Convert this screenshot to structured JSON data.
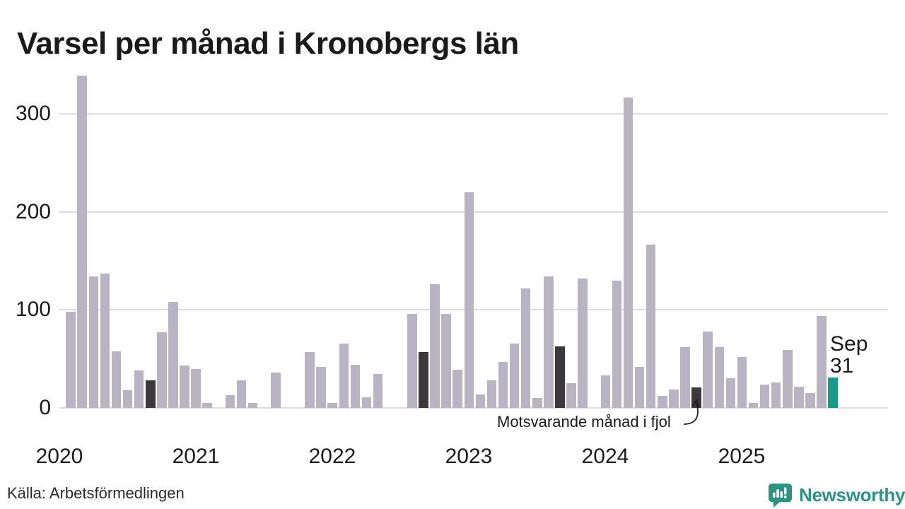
{
  "title": "Varsel per månad i Kronobergs län",
  "source": "Källa: Arbetsförmedlingen",
  "branding": {
    "logo_text": "Newsworthy",
    "logo_color": "#2f9181"
  },
  "annotations": {
    "fjol_label": "Motsvarande månad i fjol",
    "latest_month": "Sep",
    "latest_value": "31"
  },
  "colors": {
    "bar": "#b8b4c3",
    "bar_dark": "#3b393d",
    "bar_highlight": "#189a8b",
    "gridline": "#dddce1",
    "text": "#1a1a1a"
  },
  "chart_data": {
    "type": "bar",
    "title": "Varsel per månad i Kronobergs län",
    "xlabel": "",
    "ylabel": "",
    "unit": "varsel (antal personer)",
    "x_tick_labels": [
      "2020",
      "2021",
      "2022",
      "2023",
      "2024",
      "2025"
    ],
    "y_ticks": [
      0,
      100,
      200,
      300
    ],
    "ylim": [
      0,
      345
    ],
    "grid": "horizontal",
    "legend": "none",
    "highlight_note": "dark bars = Motsvarande månad i fjol (September of each prior year); teal bar = latest month Sep 2025",
    "series": [
      {
        "month": "2020-02",
        "value": 98
      },
      {
        "month": "2020-03",
        "value": 339
      },
      {
        "month": "2020-04",
        "value": 134
      },
      {
        "month": "2020-05",
        "value": 137
      },
      {
        "month": "2020-06",
        "value": 58
      },
      {
        "month": "2020-07",
        "value": 18
      },
      {
        "month": "2020-08",
        "value": 38
      },
      {
        "month": "2020-09",
        "value": 28,
        "kind": "dark"
      },
      {
        "month": "2020-10",
        "value": 77
      },
      {
        "month": "2020-11",
        "value": 108
      },
      {
        "month": "2020-12",
        "value": 43
      },
      {
        "month": "2021-01",
        "value": 40
      },
      {
        "month": "2021-02",
        "value": 5
      },
      {
        "month": "2021-04",
        "value": 13
      },
      {
        "month": "2021-05",
        "value": 28
      },
      {
        "month": "2021-06",
        "value": 5
      },
      {
        "month": "2021-08",
        "value": 36
      },
      {
        "month": "2021-11",
        "value": 57
      },
      {
        "month": "2021-12",
        "value": 42
      },
      {
        "month": "2022-01",
        "value": 5
      },
      {
        "month": "2022-02",
        "value": 66
      },
      {
        "month": "2022-03",
        "value": 44
      },
      {
        "month": "2022-04",
        "value": 11
      },
      {
        "month": "2022-05",
        "value": 35
      },
      {
        "month": "2022-08",
        "value": 96
      },
      {
        "month": "2022-09",
        "value": 57,
        "kind": "dark"
      },
      {
        "month": "2022-10",
        "value": 126
      },
      {
        "month": "2022-11",
        "value": 96
      },
      {
        "month": "2022-12",
        "value": 39
      },
      {
        "month": "2023-01",
        "value": 220
      },
      {
        "month": "2023-02",
        "value": 14
      },
      {
        "month": "2023-03",
        "value": 28
      },
      {
        "month": "2023-04",
        "value": 47
      },
      {
        "month": "2023-05",
        "value": 66
      },
      {
        "month": "2023-06",
        "value": 122
      },
      {
        "month": "2023-07",
        "value": 10
      },
      {
        "month": "2023-08",
        "value": 134
      },
      {
        "month": "2023-09",
        "value": 63,
        "kind": "dark"
      },
      {
        "month": "2023-10",
        "value": 25
      },
      {
        "month": "2023-11",
        "value": 132
      },
      {
        "month": "2024-01",
        "value": 33
      },
      {
        "month": "2024-02",
        "value": 130
      },
      {
        "month": "2024-03",
        "value": 317
      },
      {
        "month": "2024-04",
        "value": 42
      },
      {
        "month": "2024-05",
        "value": 167
      },
      {
        "month": "2024-06",
        "value": 12
      },
      {
        "month": "2024-07",
        "value": 19
      },
      {
        "month": "2024-08",
        "value": 62
      },
      {
        "month": "2024-09",
        "value": 21,
        "kind": "dark"
      },
      {
        "month": "2024-10",
        "value": 78
      },
      {
        "month": "2024-11",
        "value": 62
      },
      {
        "month": "2024-12",
        "value": 30
      },
      {
        "month": "2025-01",
        "value": 52
      },
      {
        "month": "2025-02",
        "value": 5
      },
      {
        "month": "2025-03",
        "value": 24
      },
      {
        "month": "2025-04",
        "value": 26
      },
      {
        "month": "2025-05",
        "value": 59
      },
      {
        "month": "2025-06",
        "value": 22
      },
      {
        "month": "2025-07",
        "value": 15
      },
      {
        "month": "2025-08",
        "value": 94
      },
      {
        "month": "2025-09",
        "value": 31,
        "kind": "highlight"
      }
    ]
  }
}
